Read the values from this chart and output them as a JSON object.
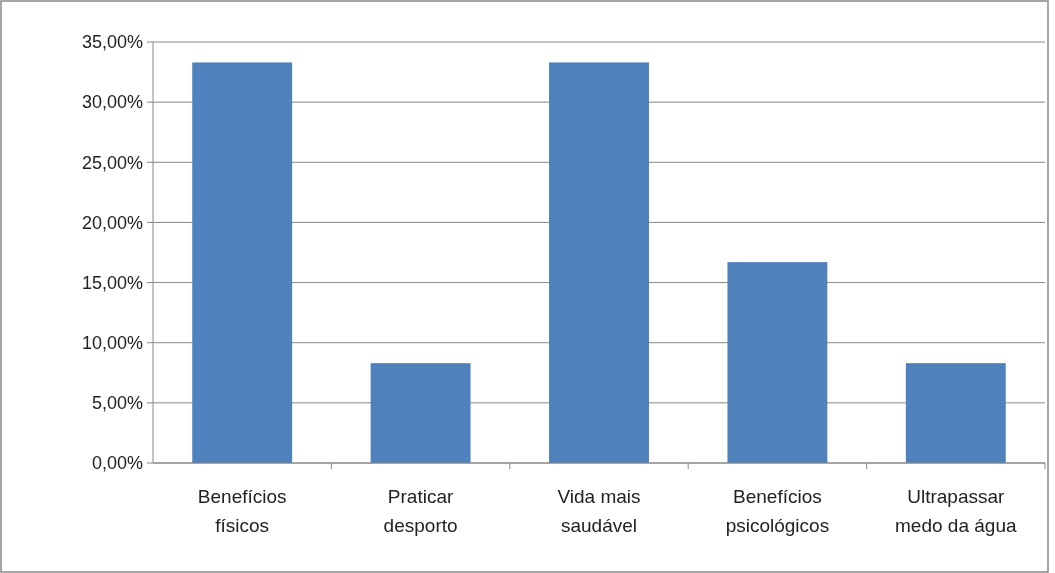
{
  "chart_data": {
    "type": "bar",
    "categories": [
      "Benefícios físicos",
      "Praticar desporto",
      "Vida mais saudável",
      "Benefícios psicológicos",
      "Ultrapassar medo da água"
    ],
    "values": [
      33.3,
      8.3,
      33.3,
      16.7,
      8.3
    ],
    "color": "#4f81bd",
    "ylim": [
      0,
      35
    ],
    "yticks": [
      {
        "value": 0,
        "label": "0,00%"
      },
      {
        "value": 5,
        "label": "5,00%"
      },
      {
        "value": 10,
        "label": "10,00%"
      },
      {
        "value": 15,
        "label": "15,00%"
      },
      {
        "value": 20,
        "label": "20,00%"
      },
      {
        "value": 25,
        "label": "25,00%"
      },
      {
        "value": 30,
        "label": "30,00%"
      },
      {
        "value": 35,
        "label": "35,00%"
      }
    ],
    "grid": "y"
  }
}
